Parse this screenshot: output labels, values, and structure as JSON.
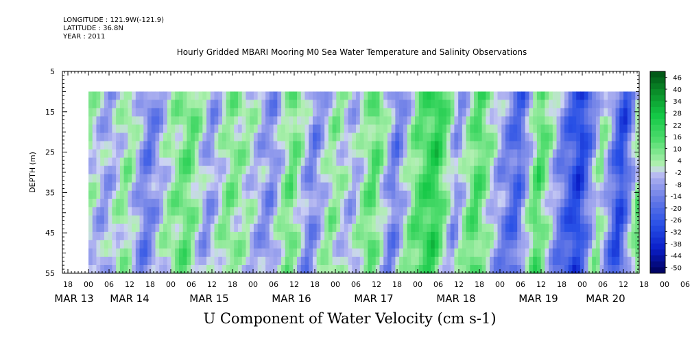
{
  "header": {
    "longitude": "LONGITUDE : 121.9W(-121.9)",
    "latitude": "LATITUDE : 36.8N",
    "year": "YEAR : 2011"
  },
  "chart_data": {
    "type": "heatmap",
    "title": "Hourly Gridded MBARI Mooring M0 Sea Water Temperature and Salinity Observations",
    "xlabel": "U Component of Water Velocity (cm s-1)",
    "ylabel": "DEPTH (m)",
    "ylim": [
      5,
      55
    ],
    "y_ticks": [
      5,
      15,
      25,
      35,
      45,
      55
    ],
    "x_hour_ticks": [
      "18",
      "00",
      "06",
      "12",
      "18",
      "00",
      "06",
      "12",
      "18",
      "00",
      "06",
      "12",
      "18",
      "00",
      "06",
      "12",
      "18",
      "00",
      "06",
      "12",
      "18",
      "00",
      "06",
      "12",
      "18",
      "00",
      "06",
      "12",
      "18",
      "00",
      "06",
      "12"
    ],
    "x_date_labels": [
      "MAR 13",
      "MAR 14",
      "MAR 15",
      "MAR 16",
      "MAR 17",
      "MAR 18",
      "MAR 19",
      "MAR 20"
    ],
    "data_depth_range": [
      10,
      55
    ],
    "colorbar": {
      "labels": [
        "46",
        "40",
        "34",
        "28",
        "22",
        "16",
        "10",
        "4",
        "-2",
        "-8",
        "-14",
        "-20",
        "-26",
        "-32",
        "-38",
        "-44",
        "-50"
      ],
      "range": [
        -50,
        50
      ]
    },
    "approx_field": {
      "note_days_axis": "days",
      "time_start_day": 0,
      "time_end_day": 7.0,
      "bands": [
        {
          "t": 0.0,
          "v": 6
        },
        {
          "t": 0.25,
          "v": -6
        },
        {
          "t": 0.5,
          "v": 8
        },
        {
          "t": 0.75,
          "v": -14
        },
        {
          "t": 1.0,
          "v": 4
        },
        {
          "t": 1.25,
          "v": 14
        },
        {
          "t": 1.5,
          "v": -8
        },
        {
          "t": 1.75,
          "v": 10
        },
        {
          "t": 2.0,
          "v": 2
        },
        {
          "t": 2.25,
          "v": -10
        },
        {
          "t": 2.5,
          "v": 14
        },
        {
          "t": 2.75,
          "v": -12
        },
        {
          "t": 3.0,
          "v": 8
        },
        {
          "t": 3.25,
          "v": -4
        },
        {
          "t": 3.5,
          "v": 16
        },
        {
          "t": 3.75,
          "v": -14
        },
        {
          "t": 4.0,
          "v": 12
        },
        {
          "t": 4.25,
          "v": 24
        },
        {
          "t": 4.5,
          "v": -8
        },
        {
          "t": 4.75,
          "v": 18
        },
        {
          "t": 5.0,
          "v": -4
        },
        {
          "t": 5.25,
          "v": -20
        },
        {
          "t": 5.5,
          "v": 18
        },
        {
          "t": 5.75,
          "v": -10
        },
        {
          "t": 6.0,
          "v": -30
        },
        {
          "t": 6.25,
          "v": 8
        },
        {
          "t": 6.5,
          "v": -28
        },
        {
          "t": 6.75,
          "v": 16
        },
        {
          "t": 7.0,
          "v": -18
        }
      ]
    }
  }
}
